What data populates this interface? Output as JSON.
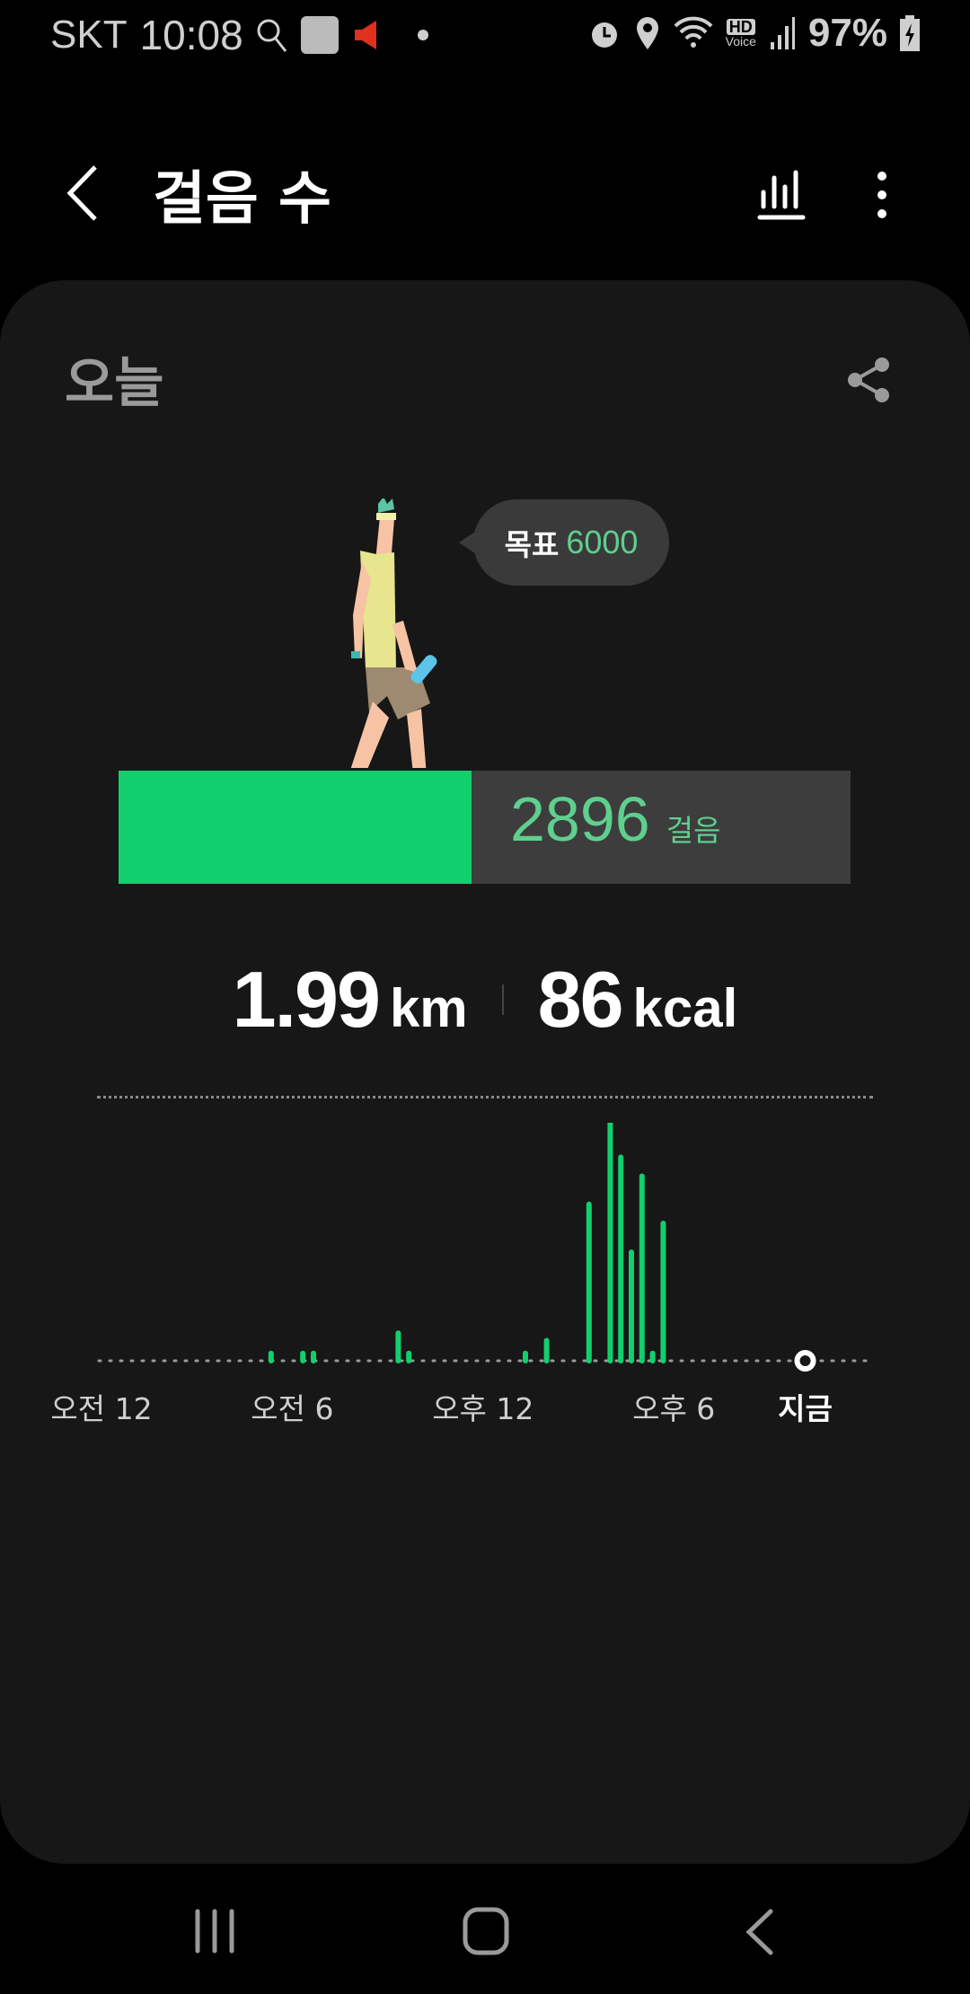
{
  "status_bar": {
    "carrier": "SKT",
    "time": "10:08",
    "battery": "97%",
    "hd_voice": "HD",
    "voice": "Voice"
  },
  "header": {
    "title": "걸음 수"
  },
  "card": {
    "period": "오늘"
  },
  "goal": {
    "label": "목표",
    "value": "6000"
  },
  "progress": {
    "steps": "2896",
    "unit": "걸음",
    "fraction": 0.4827
  },
  "stats": {
    "distance": "1.99",
    "distance_unit": "km",
    "calories": "86",
    "calories_unit": "kcal"
  },
  "colors": {
    "accent": "#12cf6e",
    "text_accent": "#5fcf8e",
    "card_bg": "#171717"
  },
  "chart_data": {
    "type": "bar",
    "x_tick_labels": [
      "오전 12",
      "오전 6",
      "오후 12",
      "오후 6",
      "지금"
    ],
    "now": "22:08",
    "x": [
      "05:20",
      "06:20",
      "06:40",
      "09:20",
      "09:40",
      "13:20",
      "14:00",
      "15:20",
      "16:00",
      "16:20",
      "16:40",
      "17:00",
      "17:20",
      "17:40"
    ],
    "values": [
      18,
      18,
      18,
      67,
      18,
      18,
      49,
      379,
      755,
      493,
      263,
      447,
      18,
      333
    ],
    "grid": false
  }
}
